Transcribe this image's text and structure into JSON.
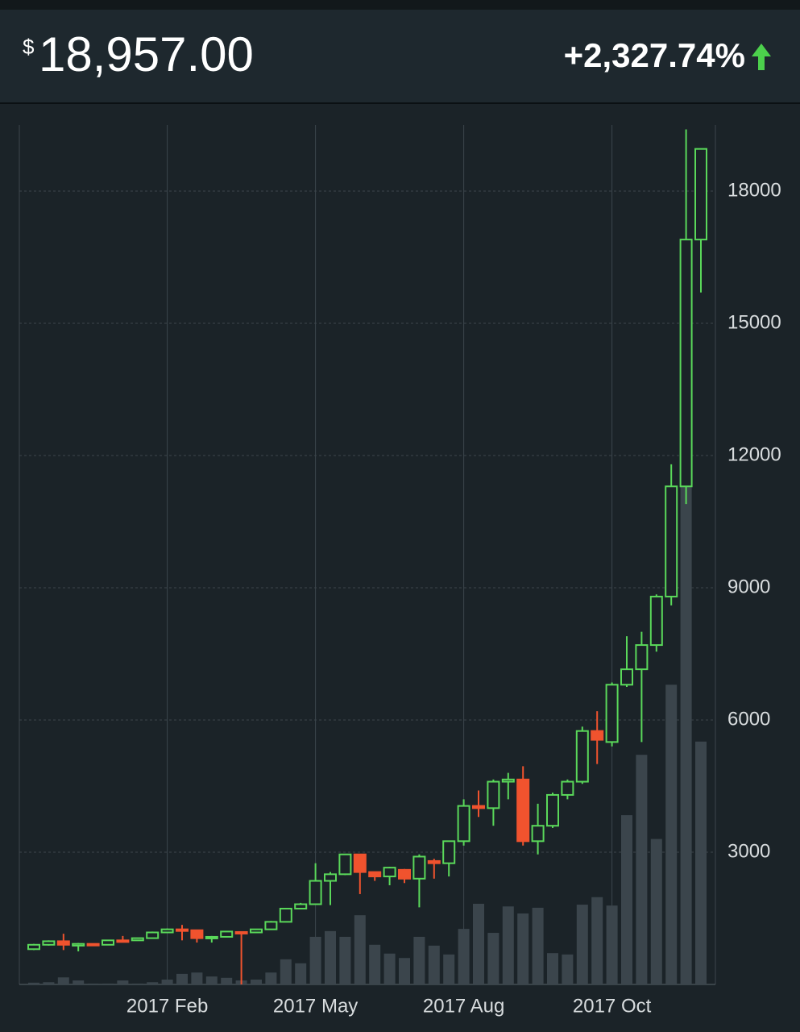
{
  "header": {
    "currency": "$",
    "price": "18,957.00",
    "change": "+2,327.74%"
  },
  "chart_data": {
    "type": "candlestick",
    "categories": [
      null,
      null,
      null,
      null,
      null,
      null,
      null,
      null,
      null,
      "2017 Feb",
      null,
      null,
      null,
      null,
      null,
      null,
      null,
      null,
      null,
      "2017 May",
      null,
      null,
      null,
      null,
      null,
      null,
      null,
      null,
      null,
      "2017 Aug",
      null,
      null,
      null,
      null,
      null,
      null,
      null,
      null,
      null,
      "2017 Oct",
      null,
      null,
      null,
      null,
      null,
      null
    ],
    "open": [
      800,
      900,
      980,
      880,
      920,
      900,
      1000,
      1000,
      1050,
      1180,
      1250,
      1230,
      1050,
      1080,
      1190,
      1180,
      1250,
      1420,
      1720,
      1820,
      2350,
      2500,
      2950,
      2550,
      2450,
      2600,
      2400,
      2800,
      2750,
      3250,
      4050,
      4000,
      4600,
      4650,
      3250,
      3600,
      4300,
      4600,
      5750,
      5500,
      6800,
      7150,
      7700,
      8800,
      11300,
      16900
    ],
    "high": [
      920,
      1000,
      1150,
      940,
      930,
      1010,
      1100,
      1060,
      1200,
      1270,
      1350,
      1240,
      1100,
      1210,
      1200,
      1260,
      1440,
      1730,
      1850,
      2750,
      2550,
      2960,
      2960,
      2560,
      2670,
      2620,
      2950,
      2850,
      3260,
      4200,
      4400,
      4650,
      4800,
      4950,
      4100,
      4350,
      4650,
      5850,
      6200,
      6850,
      7900,
      8000,
      8850,
      11800,
      19400,
      18960
    ],
    "low": [
      780,
      880,
      780,
      750,
      880,
      890,
      980,
      990,
      1040,
      1170,
      1000,
      950,
      950,
      1070,
      0,
      1170,
      1240,
      1410,
      1710,
      1810,
      1800,
      2480,
      2050,
      2350,
      2250,
      2300,
      1750,
      2400,
      2450,
      3150,
      3800,
      3600,
      4200,
      3150,
      2950,
      3550,
      4200,
      4550,
      5000,
      5400,
      6750,
      5500,
      7550,
      8600,
      10900,
      15700
    ],
    "close": [
      900,
      980,
      900,
      920,
      900,
      1000,
      990,
      1050,
      1180,
      1250,
      1230,
      1050,
      1080,
      1200,
      1180,
      1250,
      1420,
      1720,
      1820,
      2350,
      2500,
      2950,
      2550,
      2450,
      2650,
      2400,
      2900,
      2750,
      3250,
      4050,
      4000,
      4600,
      4650,
      3250,
      3600,
      4300,
      4600,
      5750,
      5550,
      6800,
      7150,
      7700,
      8800,
      11300,
      16900,
      18957
    ],
    "volume": [
      40,
      50,
      160,
      90,
      20,
      20,
      90,
      20,
      50,
      110,
      240,
      270,
      180,
      150,
      90,
      110,
      270,
      570,
      480,
      1080,
      1210,
      1080,
      1570,
      900,
      700,
      600,
      1080,
      880,
      680,
      1260,
      1830,
      1170,
      1770,
      1610,
      1740,
      710,
      680,
      1810,
      1980,
      1790,
      3840,
      5210,
      3300,
      6800,
      12970,
      5510
    ],
    "up_color": "#5ad85a",
    "down_color": "#f0532e",
    "volume_color": "#3b454c",
    "ylim": [
      0,
      19500
    ],
    "yticks": [
      3000,
      6000,
      9000,
      12000,
      15000,
      18000
    ],
    "grid": true
  }
}
